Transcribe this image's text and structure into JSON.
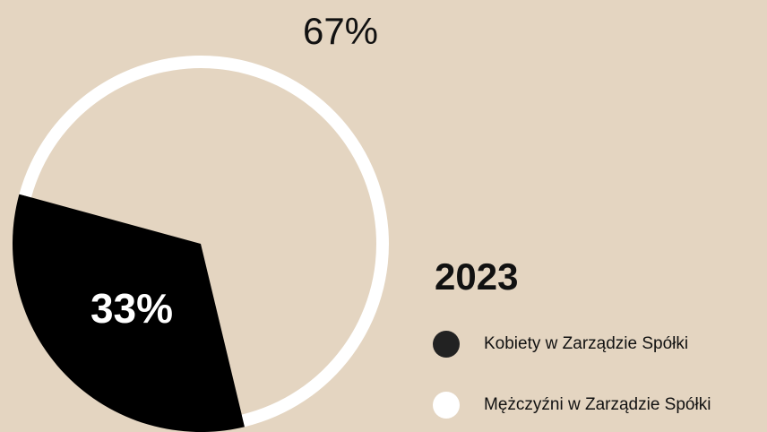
{
  "chart_data": {
    "type": "pie",
    "title": "2023",
    "categories": [
      "Kobiety w Zarządzie Spółki",
      "Mężczyźni w Zarządzie Spółki"
    ],
    "values": [
      33,
      67
    ],
    "value_labels": [
      "33%",
      "67%"
    ],
    "colors": [
      "#000000",
      "#ffffff"
    ]
  }
}
